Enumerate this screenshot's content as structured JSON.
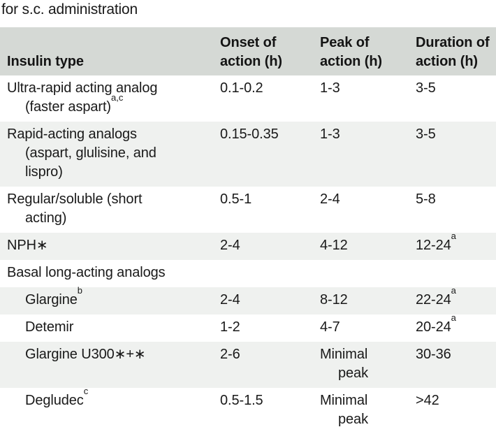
{
  "caption": "for s.c. administration",
  "colors": {
    "header_bg": "#d5d9d5",
    "stripe_bg": "#eff1ef",
    "text": "#191919"
  },
  "table": {
    "columns": [
      {
        "key": "insulin-type",
        "lines": [
          "Insulin type"
        ]
      },
      {
        "key": "onset",
        "lines": [
          "Onset of",
          "action (h)"
        ]
      },
      {
        "key": "peak",
        "lines": [
          "Peak of",
          "action (h)"
        ]
      },
      {
        "key": "duration",
        "lines": [
          "Duration of",
          "action (h)"
        ]
      }
    ],
    "rows": [
      {
        "shaded": false,
        "section": false,
        "indent": false,
        "name": {
          "lines": [
            "Ultra-rapid acting analog",
            "(faster aspart)"
          ],
          "sup": "a,c"
        },
        "onset": "0.1-0.2",
        "peak": {
          "lines": [
            "1-3"
          ]
        },
        "duration": {
          "text": "3-5",
          "sup": ""
        }
      },
      {
        "shaded": true,
        "section": false,
        "indent": false,
        "name": {
          "lines": [
            "Rapid-acting analogs",
            "(aspart, glulisine, and",
            "lispro)"
          ],
          "sup": ""
        },
        "onset": "0.15-0.35",
        "peak": {
          "lines": [
            "1-3"
          ]
        },
        "duration": {
          "text": "3-5",
          "sup": ""
        }
      },
      {
        "shaded": false,
        "section": false,
        "indent": false,
        "name": {
          "lines": [
            "Regular/soluble (short",
            "acting)"
          ],
          "sup": ""
        },
        "onset": "0.5-1",
        "peak": {
          "lines": [
            "2-4"
          ]
        },
        "duration": {
          "text": "5-8",
          "sup": ""
        }
      },
      {
        "shaded": true,
        "section": false,
        "indent": false,
        "name": {
          "lines": [
            "NPH∗"
          ],
          "sup": ""
        },
        "onset": "2-4",
        "peak": {
          "lines": [
            "4-12"
          ]
        },
        "duration": {
          "text": "12-24",
          "sup": "a"
        }
      },
      {
        "shaded": false,
        "section": true,
        "indent": false,
        "name": {
          "lines": [
            "Basal long-acting analogs"
          ],
          "sup": ""
        },
        "onset": "",
        "peak": {
          "lines": []
        },
        "duration": {
          "text": "",
          "sup": ""
        }
      },
      {
        "shaded": true,
        "section": false,
        "indent": true,
        "name": {
          "lines": [
            "Glargine"
          ],
          "sup": "b"
        },
        "onset": "2-4",
        "peak": {
          "lines": [
            "8-12"
          ]
        },
        "duration": {
          "text": "22-24",
          "sup": "a"
        }
      },
      {
        "shaded": false,
        "section": false,
        "indent": true,
        "name": {
          "lines": [
            "Detemir"
          ],
          "sup": ""
        },
        "onset": "1-2",
        "peak": {
          "lines": [
            "4-7"
          ]
        },
        "duration": {
          "text": "20-24",
          "sup": "a"
        }
      },
      {
        "shaded": true,
        "section": false,
        "indent": true,
        "name": {
          "lines": [
            "Glargine U300∗+∗"
          ],
          "sup": ""
        },
        "onset": "2-6",
        "peak": {
          "lines": [
            "Minimal",
            "peak"
          ]
        },
        "duration": {
          "text": "30-36",
          "sup": ""
        }
      },
      {
        "shaded": false,
        "section": false,
        "indent": true,
        "name": {
          "lines": [
            "Degludec"
          ],
          "sup": "c"
        },
        "onset": "0.5-1.5",
        "peak": {
          "lines": [
            "Minimal",
            "peak"
          ]
        },
        "duration": {
          "text": ">42",
          "sup": ""
        }
      }
    ]
  }
}
